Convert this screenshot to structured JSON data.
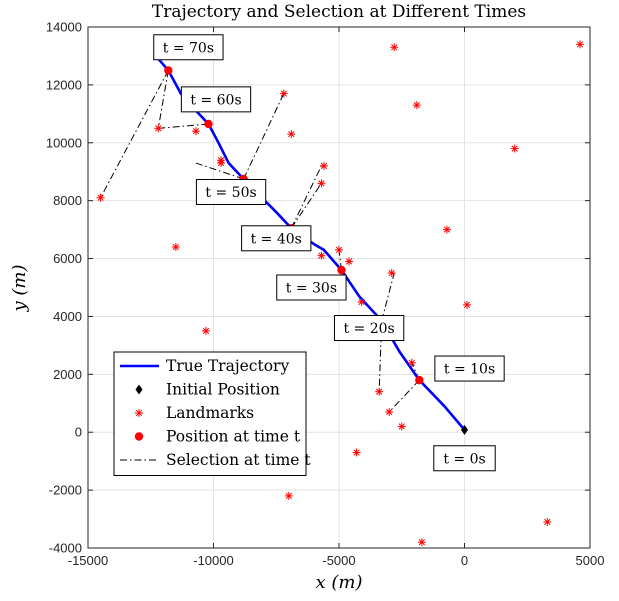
{
  "chart_data": {
    "type": "scatter",
    "title": "Trajectory and Selection at Different Times",
    "xlabel": "x (m)",
    "ylabel": "y (m)",
    "xlim": [
      -15000,
      5000
    ],
    "ylim": [
      -4000,
      14000
    ],
    "xticks": [
      -15000,
      -10000,
      -5000,
      0,
      5000
    ],
    "yticks": [
      -4000,
      -2000,
      0,
      2000,
      4000,
      6000,
      8000,
      10000,
      12000,
      14000
    ],
    "xtick_labels": [
      "-15000",
      "-10000",
      "-5000",
      "0",
      "5000"
    ],
    "ytick_labels": [
      "-4000",
      "-2000",
      "0",
      "2000",
      "4000",
      "6000",
      "8000",
      "10000",
      "12000",
      "14000"
    ],
    "grid": true,
    "legend_position": "bottom-left",
    "trajectory": {
      "name": "True Trajectory",
      "color": "#0000ff",
      "x": [
        0,
        -800,
        -1800,
        -2600,
        -3300,
        -4200,
        -4900,
        -5600,
        -6000,
        -6900,
        -7500,
        -8300,
        -8800,
        -9400,
        -9800,
        -10200,
        -10800,
        -11300,
        -11800,
        -12200
      ],
      "y": [
        80,
        900,
        1800,
        2800,
        3850,
        4700,
        5600,
        6300,
        6500,
        7050,
        7600,
        8300,
        8750,
        9300,
        10000,
        10650,
        11200,
        11700,
        12500,
        12900
      ]
    },
    "initial_position": {
      "name": "Initial Position",
      "color": "#000000",
      "x": 0,
      "y": 80
    },
    "landmarks": {
      "name": "Landmarks",
      "color": "#ff0000",
      "x": [
        -12200,
        -10700,
        -9700,
        -9700,
        -7200,
        -8800,
        -6900,
        -5600,
        -5700,
        -11500,
        -5700,
        -5000,
        -4600,
        -2900,
        -1900,
        -700,
        2000,
        -2800,
        -4100,
        -10300,
        -2100,
        -3400,
        -3000,
        -2500,
        -4300,
        -7000,
        -1700,
        3300,
        -14500,
        4600,
        100
      ],
      "y": [
        10500,
        10400,
        9300,
        9400,
        11700,
        8500,
        10300,
        9200,
        8600,
        6400,
        6100,
        6300,
        5900,
        5500,
        11300,
        7000,
        9800,
        13300,
        4500,
        3500,
        2400,
        1400,
        700,
        200,
        -700,
        -2200,
        -3800,
        -3100,
        8100,
        13400,
        4400
      ]
    },
    "positions": {
      "name": "Position at time t",
      "color": "#ff0000",
      "times": [
        10,
        20,
        30,
        40,
        50,
        60,
        70
      ],
      "x": [
        -1800,
        -3300,
        -4900,
        -6900,
        -8800,
        -10200,
        -11800
      ],
      "y": [
        1800,
        3850,
        5600,
        7050,
        8750,
        10650,
        12500
      ]
    },
    "selection_name": "Selection at time t",
    "selections": [
      {
        "from": [
          -1800,
          1800
        ],
        "to": [
          -2100,
          2400
        ]
      },
      {
        "from": [
          -1800,
          1800
        ],
        "to": [
          -3000,
          700
        ]
      },
      {
        "from": [
          -3300,
          3850
        ],
        "to": [
          -2800,
          5500
        ]
      },
      {
        "from": [
          -3300,
          3850
        ],
        "to": [
          -3400,
          1400
        ]
      },
      {
        "from": [
          -4900,
          5600
        ],
        "to": [
          -5000,
          6300
        ]
      },
      {
        "from": [
          -6900,
          7050
        ],
        "to": [
          -5700,
          9200
        ]
      },
      {
        "from": [
          -6900,
          7050
        ],
        "to": [
          -5700,
          8600
        ]
      },
      {
        "from": [
          -8800,
          8750
        ],
        "to": [
          -7200,
          11700
        ]
      },
      {
        "from": [
          -8800,
          8750
        ],
        "to": [
          -10700,
          9300
        ]
      },
      {
        "from": [
          -10200,
          10650
        ],
        "to": [
          -12200,
          10500
        ]
      },
      {
        "from": [
          -11800,
          12500
        ],
        "to": [
          -12200,
          10500
        ]
      },
      {
        "from": [
          -11800,
          12500
        ],
        "to": [
          -14500,
          8100
        ]
      }
    ],
    "annotations": [
      {
        "text": "t = 0s",
        "x": 0,
        "y": -900
      },
      {
        "text": "t = 10s",
        "x": 200,
        "y": 2200
      },
      {
        "text": "t = 20s",
        "x": -3800,
        "y": 3600
      },
      {
        "text": "t = 30s",
        "x": -6100,
        "y": 5000
      },
      {
        "text": "t = 40s",
        "x": -7500,
        "y": 6700
      },
      {
        "text": "t = 50s",
        "x": -9300,
        "y": 8300
      },
      {
        "text": "t = 60s",
        "x": -9900,
        "y": 11500
      },
      {
        "text": "t = 70s",
        "x": -11000,
        "y": 13300
      }
    ],
    "legend": [
      "True Trajectory",
      "Initial Position",
      "Landmarks",
      "Position at time t",
      "Selection at time t"
    ]
  }
}
